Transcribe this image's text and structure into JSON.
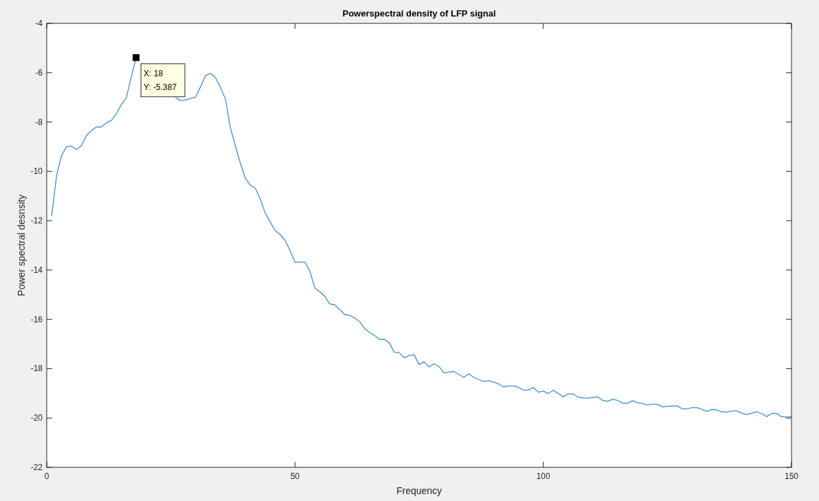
{
  "chart_data": {
    "type": "line",
    "title": "Powerspectral density of LFP signal",
    "xlabel": "Frequency",
    "ylabel": "Power spectral desnsity",
    "xlim": [
      0,
      150
    ],
    "ylim": [
      -22,
      -4
    ],
    "xticks": [
      0,
      50,
      100,
      150
    ],
    "yticks": [
      -22,
      -20,
      -18,
      -16,
      -14,
      -12,
      -10,
      -8,
      -6,
      -4
    ],
    "grid": false,
    "annotations": [
      {
        "text": "X: 18\nY: -5.387",
        "x": 18,
        "y": -5.387
      }
    ],
    "series": [
      {
        "color": "#3d8fd4",
        "x": [
          1,
          2,
          3,
          4,
          5,
          6,
          7,
          8,
          9,
          10,
          11,
          12,
          13,
          14,
          15,
          16,
          17,
          18,
          19,
          20,
          21,
          22,
          23,
          24,
          25,
          26,
          27,
          28,
          29,
          30,
          31,
          32,
          33,
          34,
          35,
          36,
          37,
          38,
          39,
          40,
          41,
          42,
          43,
          44,
          45,
          46,
          47,
          48,
          49,
          50,
          51,
          52,
          53,
          54,
          55,
          56,
          57,
          58,
          59,
          60,
          61,
          62,
          63,
          64,
          65,
          66,
          67,
          68,
          69,
          70,
          71,
          72,
          73,
          74,
          75,
          76,
          77,
          78,
          79,
          80,
          81,
          82,
          83,
          84,
          85,
          86,
          87,
          88,
          89,
          90,
          91,
          92,
          93,
          94,
          95,
          96,
          97,
          98,
          99,
          100,
          101,
          102,
          103,
          104,
          105,
          106,
          107,
          108,
          109,
          110,
          111,
          112,
          113,
          114,
          115,
          116,
          117,
          118,
          119,
          120,
          121,
          122,
          123,
          124,
          125,
          126,
          127,
          128,
          129,
          130,
          131,
          132,
          133,
          134,
          135,
          136,
          137,
          138,
          139,
          140,
          141,
          142,
          143,
          144,
          145,
          146,
          147,
          148,
          149,
          150
        ],
        "values": [
          -11.8,
          -10.15,
          -9.35,
          -9.0,
          -8.98,
          -9.12,
          -8.96,
          -8.55,
          -8.35,
          -8.2,
          -8.2,
          -8.03,
          -7.94,
          -7.67,
          -7.3,
          -7.04,
          -6.2,
          -5.387,
          null,
          null,
          null,
          null,
          null,
          null,
          null,
          -7.02,
          -7.13,
          -7.1,
          -7.04,
          -6.99,
          -6.56,
          -6.11,
          -6.03,
          -6.2,
          -6.6,
          -7.07,
          -8.23,
          -8.98,
          -9.67,
          -10.28,
          -10.56,
          -10.68,
          -11.12,
          -11.68,
          -12.05,
          -12.4,
          -12.56,
          -12.79,
          -13.21,
          -13.68,
          -13.68,
          -13.68,
          -14.05,
          -14.73,
          -14.88,
          -15.07,
          -15.37,
          -15.41,
          -15.6,
          -15.8,
          -15.84,
          -15.94,
          -16.09,
          -16.37,
          -16.53,
          -16.65,
          -16.81,
          -16.81,
          -16.96,
          -17.33,
          -17.35,
          -17.56,
          -17.46,
          -17.44,
          -17.83,
          -17.72,
          -17.93,
          -17.8,
          -17.91,
          -18.17,
          -18.14,
          -18.12,
          -18.23,
          -18.35,
          -18.21,
          -18.35,
          -18.44,
          -18.52,
          -18.49,
          -18.54,
          -18.62,
          -18.74,
          -18.7,
          -18.7,
          -18.76,
          -18.87,
          -18.87,
          -18.76,
          -18.95,
          -18.91,
          -19.01,
          -18.88,
          -19.0,
          -19.14,
          -19.02,
          -19.02,
          -19.15,
          -19.19,
          -19.19,
          -19.17,
          -19.15,
          -19.29,
          -19.32,
          -19.24,
          -19.29,
          -19.4,
          -19.4,
          -19.3,
          -19.38,
          -19.42,
          -19.47,
          -19.44,
          -19.44,
          -19.55,
          -19.53,
          -19.52,
          -19.51,
          -19.63,
          -19.63,
          -19.58,
          -19.58,
          -19.66,
          -19.73,
          -19.65,
          -19.68,
          -19.75,
          -19.76,
          -19.71,
          -19.71,
          -19.8,
          -19.86,
          -19.8,
          -19.75,
          -19.82,
          -19.94,
          -19.82,
          -19.81,
          -19.95,
          -19.96,
          -19.94
        ]
      }
    ]
  }
}
